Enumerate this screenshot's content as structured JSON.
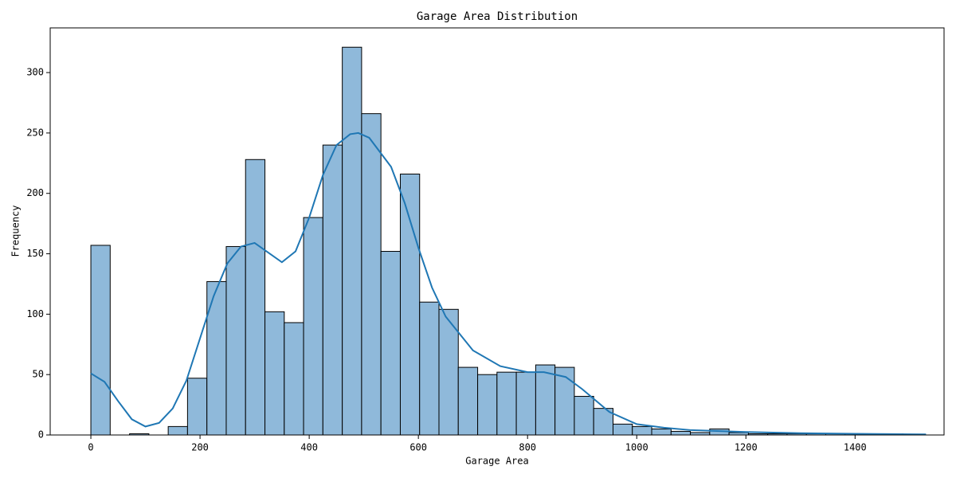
{
  "chart_data": {
    "type": "histogram",
    "title": "Garage Area Distribution",
    "xlabel": "Garage Area",
    "ylabel": "Frequency",
    "bins": [
      0,
      35.4,
      70.9,
      106.3,
      141.7,
      177.1,
      212.6,
      248.0,
      283.4,
      318.9,
      354.3,
      389.7,
      425.1,
      460.6,
      496.0,
      531.4,
      566.9,
      602.3,
      637.7,
      673.1,
      708.6,
      744.0,
      779.4,
      814.9,
      850.3,
      885.7,
      921.1,
      956.6,
      992.0,
      1027.4,
      1062.9,
      1098.3,
      1133.7,
      1169.1,
      1204.6,
      1240.0,
      1275.4,
      1310.9,
      1346.3,
      1381.7,
      1417.1,
      1452.6,
      1488.0
    ],
    "values": [
      157,
      0,
      1,
      0,
      7,
      47,
      127,
      156,
      228,
      102,
      93,
      180,
      240,
      321,
      266,
      152,
      216,
      110,
      104,
      56,
      50,
      52,
      52,
      58,
      56,
      32,
      22,
      9,
      7,
      5,
      3,
      2,
      5,
      2,
      1,
      1,
      1,
      1,
      1,
      1,
      0,
      1
    ],
    "color": "#8fb9da",
    "edgecolor": "#000000",
    "kde": {
      "color": "#1f77b4",
      "x": [
        0,
        25,
        50,
        75,
        100,
        125,
        150,
        175,
        200,
        225,
        250,
        275,
        300,
        325,
        350,
        375,
        400,
        425,
        450,
        475,
        490,
        510,
        550,
        575,
        600,
        625,
        650,
        700,
        750,
        800,
        830,
        870,
        900,
        950,
        1000,
        1050,
        1100,
        1200,
        1300,
        1400,
        1530
      ],
      "y": [
        51,
        44,
        28,
        13,
        7,
        10,
        22,
        45,
        80,
        115,
        142,
        156,
        159,
        151,
        143,
        152,
        180,
        215,
        240,
        249,
        250,
        246,
        222,
        192,
        155,
        122,
        98,
        70,
        57,
        52,
        52,
        48,
        38,
        19,
        9,
        6,
        4,
        2.5,
        1.5,
        1,
        0.5
      ]
    },
    "xlim": [
      -74.5,
      1563
    ],
    "ylim": [
      0,
      337
    ],
    "xticks": [
      0,
      200,
      400,
      600,
      800,
      1000,
      1200,
      1400
    ],
    "yticks": [
      0,
      50,
      100,
      150,
      200,
      250,
      300
    ]
  }
}
